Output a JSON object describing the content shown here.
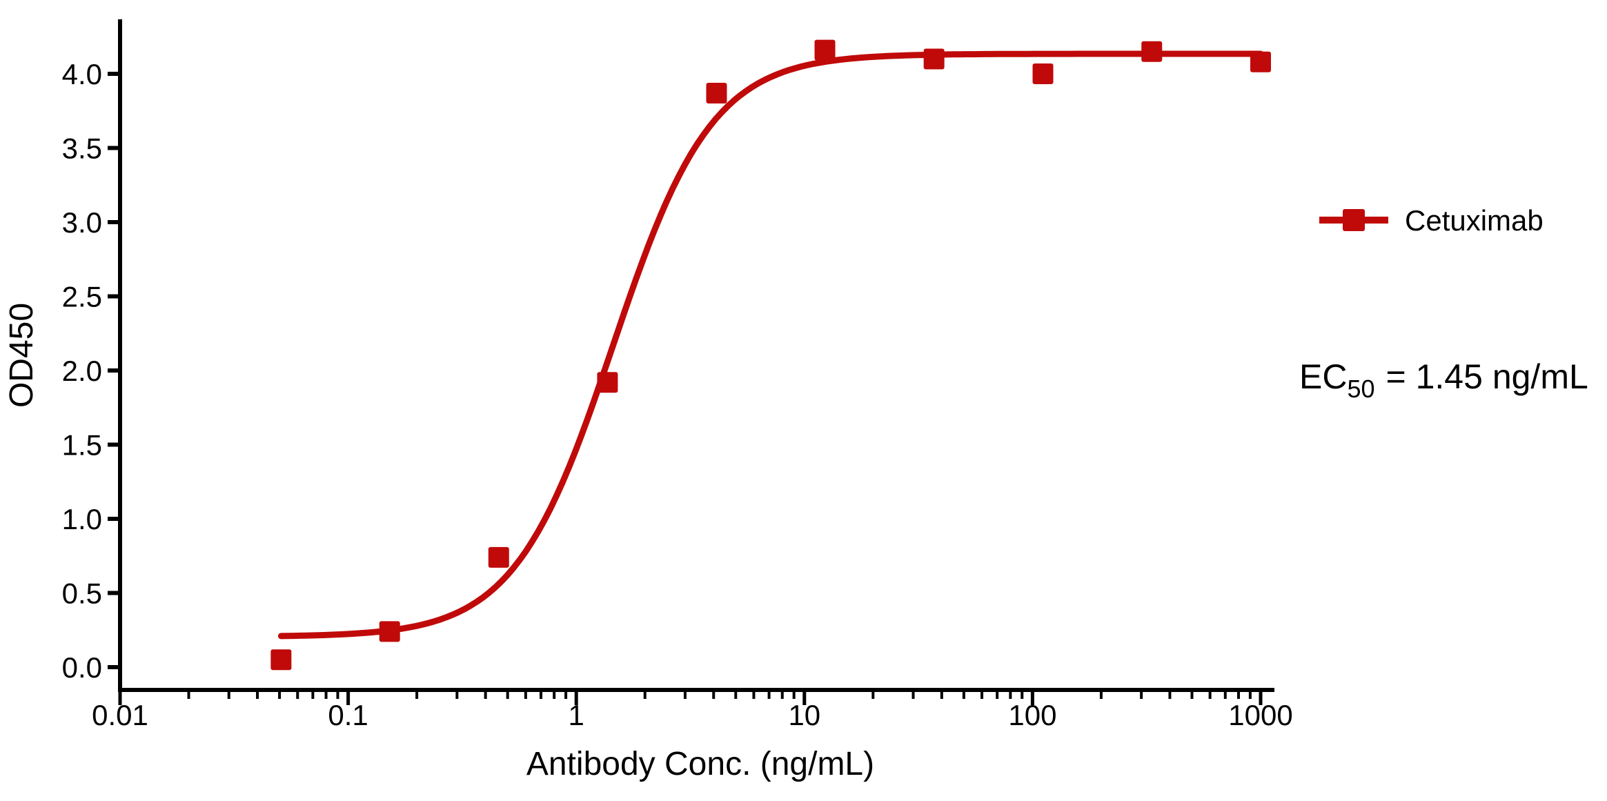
{
  "chart_data": {
    "type": "scatter",
    "title": "",
    "xlabel": "Antibody Conc. (ng/mL)",
    "ylabel": "OD450",
    "x_scale": "log",
    "xlim": [
      0.01,
      1150
    ],
    "ylim": [
      -0.15,
      4.37
    ],
    "grid": false,
    "x_ticks": [
      0.01,
      0.1,
      1,
      10,
      100,
      1000
    ],
    "x_tick_labels": [
      "0.01",
      "0.1",
      "1",
      "10",
      "100",
      "1000"
    ],
    "y_ticks": [
      0.0,
      0.5,
      1.0,
      1.5,
      2.0,
      2.5,
      3.0,
      3.5,
      4.0
    ],
    "y_tick_labels": [
      "0.0",
      "0.5",
      "1.0",
      "1.5",
      "2.0",
      "2.5",
      "3.0",
      "3.5",
      "4.0"
    ],
    "series": [
      {
        "name": "Cetuximab",
        "color": "#C00A0A",
        "marker": "square",
        "x": [
          0.0508,
          0.152,
          0.457,
          1.37,
          4.12,
          12.3,
          37.0,
          111.1,
          333.3,
          1000
        ],
        "y": [
          0.05,
          0.24,
          0.74,
          1.92,
          3.87,
          4.16,
          4.1,
          4.0,
          4.15,
          4.08
        ]
      }
    ],
    "fit_curve": {
      "model": "4PL",
      "bottom": 0.205,
      "top": 4.135,
      "ec50": 1.45,
      "hill": 2.0,
      "x_range": [
        0.0508,
        1000
      ]
    },
    "legend": {
      "label": "Cetuximab",
      "position": "right"
    },
    "annotation": {
      "prefix": "EC",
      "sub": "50",
      "rest": "= 1.45 ng/mL"
    }
  }
}
